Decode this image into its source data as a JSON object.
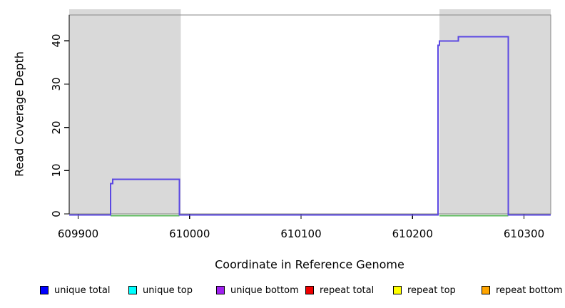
{
  "figure": {
    "background": "#ffffff"
  },
  "chart_data": {
    "type": "line",
    "subtype": "step-coverage",
    "title": "",
    "xlabel": "Coordinate in Reference Genome",
    "ylabel": "Read Coverage Depth",
    "xlim": [
      609892,
      610324
    ],
    "ylim": [
      0,
      46
    ],
    "grid": false,
    "x_ticks": [
      {
        "value": 609900,
        "label": "609900"
      },
      {
        "value": 610000,
        "label": "610000"
      },
      {
        "value": 610100,
        "label": "610100"
      },
      {
        "value": 610200,
        "label": "610200"
      },
      {
        "value": 610300,
        "label": "610300"
      }
    ],
    "y_ticks": [
      {
        "value": 0,
        "label": "0"
      },
      {
        "value": 10,
        "label": "10"
      },
      {
        "value": 20,
        "label": "20"
      },
      {
        "value": 30,
        "label": "30"
      },
      {
        "value": 40,
        "label": "40"
      }
    ],
    "shaded_regions": [
      {
        "name": "left-gray-region",
        "x0": 609892,
        "x1": 609992,
        "color": "#d9d9d9"
      },
      {
        "name": "right-gray-region",
        "x0": 610224,
        "x1": 610324,
        "color": "#d9d9d9"
      }
    ],
    "series": [
      {
        "name": "unique bottom coverage line",
        "color": "#5b48e2",
        "points": [
          [
            609892,
            0
          ],
          [
            609929,
            0
          ],
          [
            609929,
            7
          ],
          [
            609931,
            7
          ],
          [
            609931,
            8
          ],
          [
            609991,
            8
          ],
          [
            609991,
            0
          ],
          [
            610223,
            0
          ],
          [
            610223,
            39
          ],
          [
            610224,
            39
          ],
          [
            610224,
            40
          ],
          [
            610241,
            40
          ],
          [
            610241,
            41
          ],
          [
            610286,
            41
          ],
          [
            610286,
            0
          ],
          [
            610324,
            0
          ]
        ]
      },
      {
        "name": "green zero-depth baseline",
        "color": "#5cb85c",
        "y": 0,
        "segments": [
          [
            609929,
            609991
          ],
          [
            610224,
            610286
          ]
        ]
      }
    ],
    "legend": {
      "position": "bottom",
      "entries": [
        {
          "label": "unique total",
          "color": "#0000ff"
        },
        {
          "label": "unique top",
          "color": "#00ffff"
        },
        {
          "label": "unique bottom",
          "color": "#a020f0"
        },
        {
          "label": "repeat total",
          "color": "#ee0000"
        },
        {
          "label": "repeat top",
          "color": "#ffff00"
        },
        {
          "label": "repeat bottom",
          "color": "#ffa500"
        }
      ]
    },
    "box_color": "#878787",
    "axis_color": "#000000"
  }
}
